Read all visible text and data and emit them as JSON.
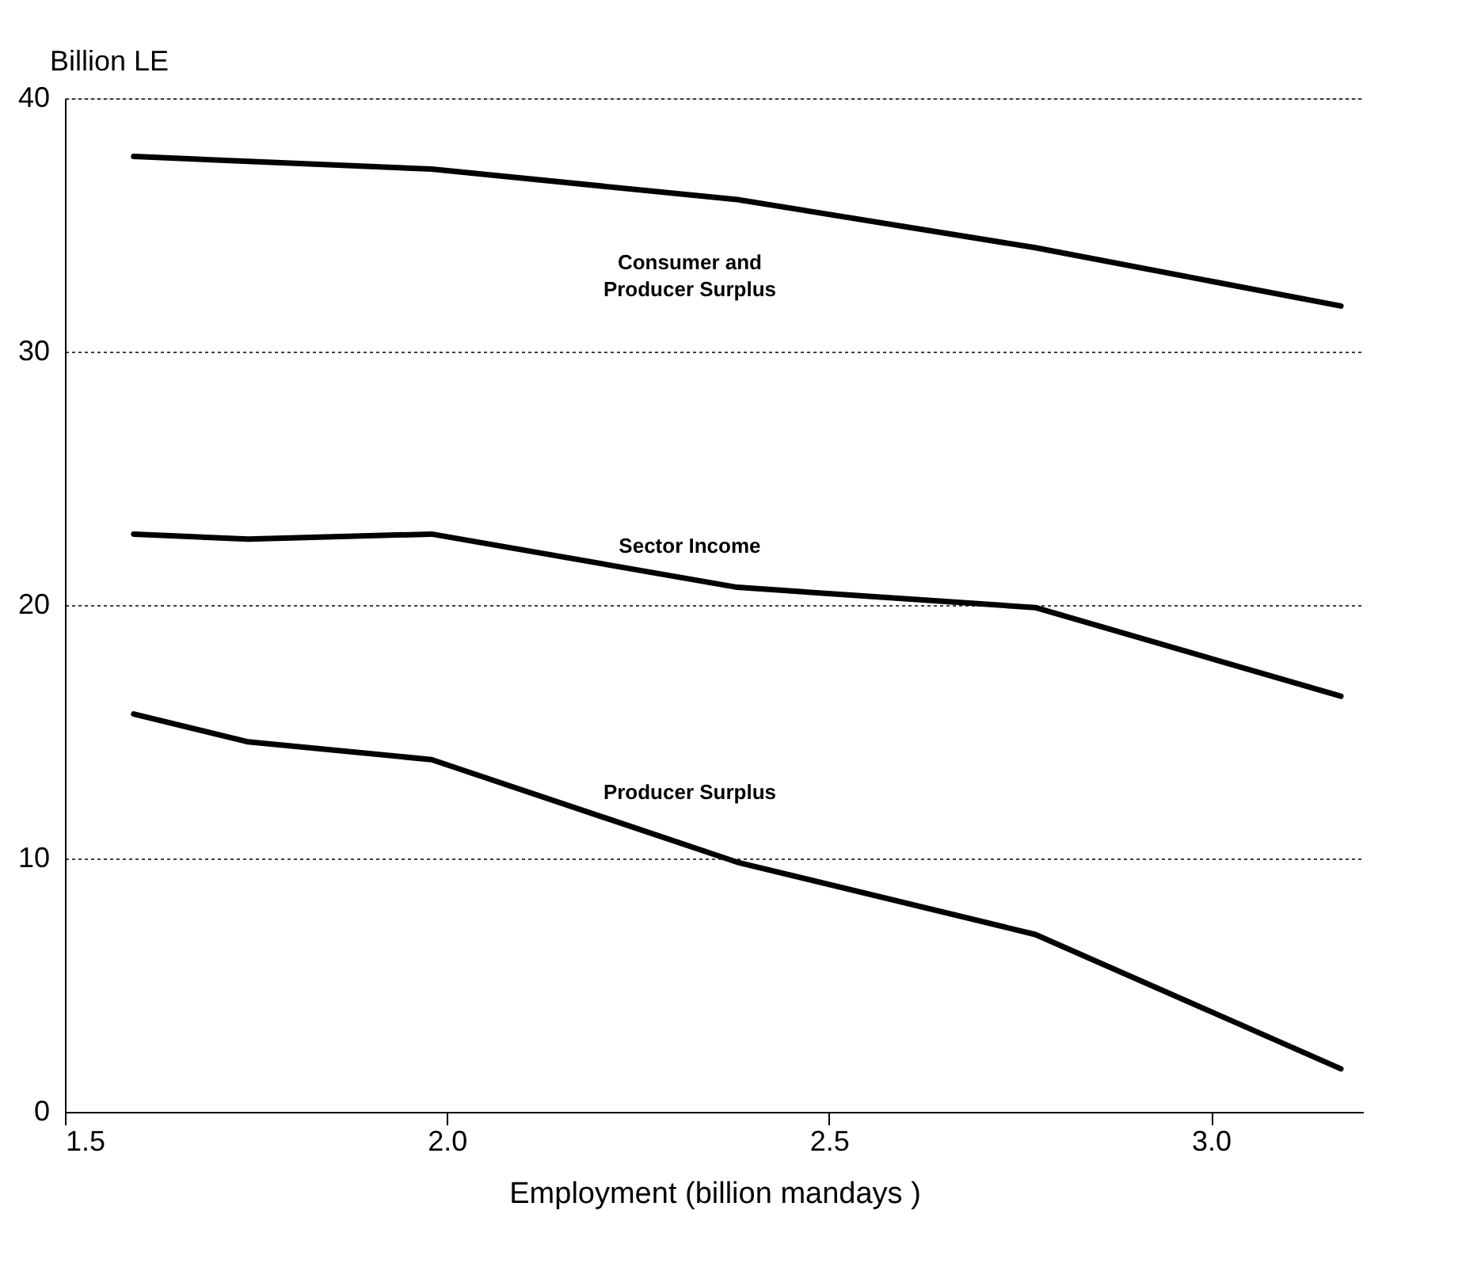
{
  "chart_data": {
    "type": "line",
    "xlabel": "Employment (billion mandays        )",
    "ylabel": "Billion LE",
    "xlim": [
      1.5,
      3.2
    ],
    "xticks": [
      {
        "value": 1.5,
        "label": "1.5"
      },
      {
        "value": 2.0,
        "label": "2.0"
      },
      {
        "value": 2.5,
        "label": "2.5"
      },
      {
        "value": 3.0,
        "label": "3.0"
      }
    ],
    "ylim": [
      0,
      40
    ],
    "yticks": [
      0,
      10,
      20,
      30,
      40
    ],
    "grid": "y",
    "legend": false,
    "marker": "none",
    "line_style": "solid",
    "series": [
      {
        "name": "Consumer and\nProducer Surplus",
        "color": "#000000",
        "x": [
          1.59,
          1.98,
          2.38,
          2.77,
          3.17
        ],
        "values": [
          37.7,
          37.2,
          36.0,
          34.1,
          31.8
        ]
      },
      {
        "name": "Sector Income",
        "color": "#000000",
        "x": [
          1.59,
          1.74,
          1.98,
          2.38,
          2.77,
          3.17
        ],
        "values": [
          22.8,
          22.6,
          22.8,
          20.7,
          19.9,
          16.4
        ]
      },
      {
        "name": "Producer Surplus",
        "color": "#000000",
        "x": [
          1.59,
          1.74,
          1.98,
          2.38,
          2.77,
          3.17
        ],
        "values": [
          15.7,
          14.6,
          13.9,
          9.85,
          7.0,
          1.7
        ]
      }
    ]
  }
}
